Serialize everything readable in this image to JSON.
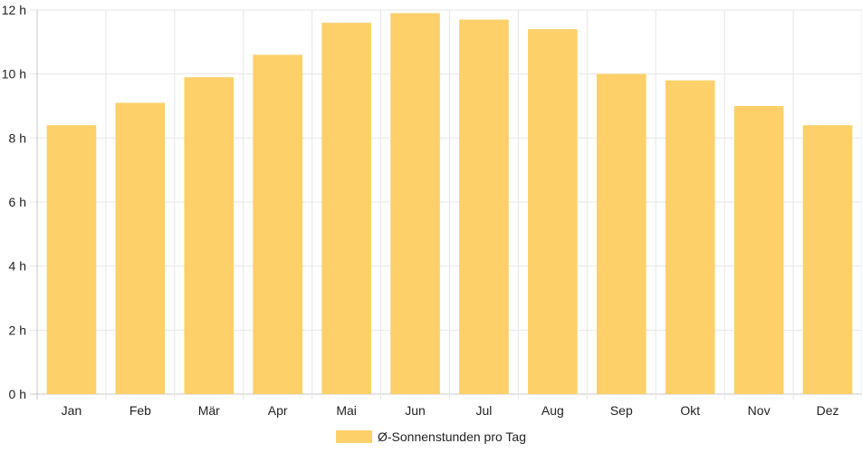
{
  "chart_data": {
    "type": "bar",
    "categories": [
      "Jan",
      "Feb",
      "Mär",
      "Apr",
      "Mai",
      "Jun",
      "Jul",
      "Aug",
      "Sep",
      "Okt",
      "Nov",
      "Dez"
    ],
    "series": [
      {
        "name": "Ø-Sonnenstunden pro Tag",
        "values": [
          8.4,
          9.1,
          9.9,
          10.6,
          11.6,
          11.9,
          11.7,
          11.4,
          10.0,
          9.8,
          9.0,
          8.4
        ],
        "color": "#fdd06a"
      }
    ],
    "y_ticks": [
      "0 h",
      "2 h",
      "4 h",
      "6 h",
      "8 h",
      "10 h",
      "12 h"
    ],
    "ylim": [
      0,
      12
    ],
    "grid": true,
    "legend_position": "bottom-center",
    "gridline_color": "#e6e6e6",
    "axis_color": "#c8c8c8"
  }
}
